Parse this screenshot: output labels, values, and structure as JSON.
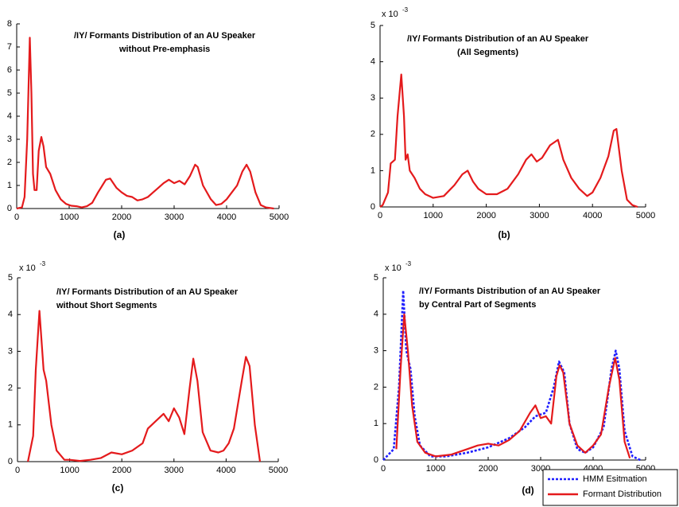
{
  "chart_data": [
    {
      "type": "line",
      "title": [
        "/IY/ Formants Distribution of an AU Speaker",
        "without Pre-emphasis"
      ],
      "panel_label": "(a)",
      "color": "#e41a1c",
      "x": [
        0,
        100,
        150,
        200,
        250,
        280,
        310,
        340,
        380,
        420,
        470,
        510,
        560,
        640,
        740,
        840,
        940,
        1040,
        1140,
        1240,
        1340,
        1440,
        1550,
        1700,
        1780,
        1900,
        2000,
        2100,
        2200,
        2300,
        2400,
        2500,
        2600,
        2700,
        2800,
        2900,
        3000,
        3100,
        3200,
        3300,
        3400,
        3450,
        3550,
        3700,
        3800,
        3900,
        4000,
        4100,
        4200,
        4300,
        4380,
        4450,
        4550,
        4650,
        4750,
        4900
      ],
      "values": [
        0,
        0.05,
        0.5,
        3,
        7.4,
        5,
        1.5,
        0.8,
        0.8,
        2.5,
        3.1,
        2.7,
        1.8,
        1.5,
        0.8,
        0.4,
        0.2,
        0.12,
        0.1,
        0.05,
        0.1,
        0.25,
        0.7,
        1.25,
        1.3,
        0.9,
        0.7,
        0.55,
        0.5,
        0.35,
        0.4,
        0.5,
        0.7,
        0.9,
        1.1,
        1.25,
        1.1,
        1.2,
        1.05,
        1.4,
        1.9,
        1.8,
        1.0,
        0.4,
        0.15,
        0.2,
        0.4,
        0.7,
        1.0,
        1.6,
        1.9,
        1.6,
        0.7,
        0.15,
        0.05,
        0
      ],
      "xlim": [
        0,
        5000
      ],
      "xticks": [
        0,
        1000,
        2000,
        3000,
        4000,
        5000
      ],
      "ylim": [
        0,
        8
      ],
      "yticks": [
        0,
        1,
        2,
        3,
        4,
        5,
        6,
        7,
        8
      ]
    },
    {
      "type": "line",
      "title": [
        "/IY/ Formants Distribution of an AU Speaker",
        "(All Segments)"
      ],
      "panel_label": "(b)",
      "y_scale_base": "x 10",
      "y_scale_exponent": "-3",
      "color": "#e41a1c",
      "x": [
        0,
        50,
        150,
        200,
        280,
        330,
        400,
        450,
        480,
        520,
        560,
        650,
        750,
        850,
        1000,
        1200,
        1400,
        1550,
        1650,
        1750,
        1850,
        2000,
        2200,
        2400,
        2600,
        2750,
        2850,
        2950,
        3050,
        3200,
        3350,
        3450,
        3600,
        3750,
        3900,
        4000,
        4150,
        4300,
        4400,
        4450,
        4550,
        4650,
        4750,
        4850
      ],
      "values": [
        0,
        0.05,
        0.4,
        1.2,
        1.3,
        2.5,
        3.65,
        2.5,
        1.3,
        1.45,
        1.0,
        0.8,
        0.5,
        0.35,
        0.25,
        0.3,
        0.6,
        0.9,
        1.0,
        0.7,
        0.5,
        0.35,
        0.35,
        0.5,
        0.9,
        1.3,
        1.45,
        1.25,
        1.35,
        1.7,
        1.85,
        1.3,
        0.8,
        0.5,
        0.3,
        0.4,
        0.8,
        1.4,
        2.1,
        2.15,
        1.0,
        0.2,
        0.05,
        0
      ],
      "xlim": [
        0,
        5000
      ],
      "xticks": [
        0,
        1000,
        2000,
        3000,
        4000,
        5000
      ],
      "ylim": [
        0,
        5
      ],
      "yticks": [
        0,
        1,
        2,
        3,
        4,
        5
      ]
    },
    {
      "type": "line",
      "title": [
        "/IY/ Formants Distribution of an AU Speaker",
        "without Short Segments"
      ],
      "panel_label": "(c)",
      "y_scale_base": "x 10",
      "y_scale_exponent": "-3",
      "color": "#e41a1c",
      "x": [
        200,
        300,
        350,
        420,
        500,
        550,
        650,
        750,
        900,
        1000,
        1200,
        1400,
        1600,
        1800,
        2000,
        2200,
        2400,
        2500,
        2650,
        2800,
        2900,
        3000,
        3100,
        3200,
        3300,
        3370,
        3450,
        3550,
        3700,
        3850,
        3950,
        4050,
        4150,
        4300,
        4380,
        4450,
        4550,
        4650
      ],
      "values": [
        0,
        0.7,
        2.5,
        4.1,
        2.5,
        2.2,
        1.0,
        0.3,
        0.05,
        0.05,
        0.02,
        0.05,
        0.1,
        0.25,
        0.2,
        0.3,
        0.5,
        0.9,
        1.1,
        1.3,
        1.1,
        1.45,
        1.2,
        0.75,
        2.0,
        2.8,
        2.2,
        0.8,
        0.3,
        0.25,
        0.3,
        0.5,
        0.9,
        2.2,
        2.85,
        2.6,
        1.0,
        0
      ],
      "xlim": [
        0,
        5000
      ],
      "xticks": [
        0,
        1000,
        2000,
        3000,
        4000,
        5000
      ],
      "ylim": [
        0,
        5
      ],
      "yticks": [
        0,
        1,
        2,
        3,
        4,
        5
      ]
    },
    {
      "type": "line",
      "title": [
        "/IY/ Formants Distribution of an AU Speaker",
        "by Central Part of Segments"
      ],
      "panel_label": "(d)",
      "y_scale_base": "x 10",
      "y_scale_exponent": "-3",
      "series": [
        {
          "name": "HMM Esitmation",
          "color": "#1f1fff",
          "dash": "dotted",
          "x": [
            0,
            200,
            300,
            380,
            440,
            520,
            600,
            700,
            900,
            1200,
            1600,
            2000,
            2400,
            2700,
            2900,
            3100,
            3250,
            3350,
            3450,
            3550,
            3700,
            3850,
            4000,
            4200,
            4350,
            4430,
            4500,
            4600,
            4750,
            4900
          ],
          "values": [
            0,
            0.3,
            2.0,
            4.65,
            3.0,
            2.5,
            1.2,
            0.4,
            0.1,
            0.1,
            0.2,
            0.35,
            0.6,
            0.9,
            1.2,
            1.3,
            2.0,
            2.7,
            2.4,
            1.0,
            0.3,
            0.2,
            0.35,
            0.9,
            2.5,
            3.0,
            2.5,
            0.8,
            0.1,
            0
          ]
        },
        {
          "name": "Formant Distribution",
          "color": "#e41a1c",
          "dash": "solid",
          "x": [
            250,
            330,
            400,
            470,
            550,
            650,
            800,
            1000,
            1300,
            1600,
            1800,
            2000,
            2200,
            2400,
            2600,
            2800,
            2900,
            3000,
            3100,
            3200,
            3300,
            3360,
            3430,
            3550,
            3700,
            3850,
            4000,
            4150,
            4300,
            4420,
            4500,
            4600,
            4700
          ],
          "values": [
            0.3,
            2.5,
            4.0,
            3.0,
            1.5,
            0.5,
            0.2,
            0.1,
            0.15,
            0.3,
            0.4,
            0.45,
            0.4,
            0.55,
            0.8,
            1.3,
            1.5,
            1.15,
            1.2,
            1.0,
            2.3,
            2.6,
            2.4,
            1.0,
            0.4,
            0.2,
            0.4,
            0.7,
            2.0,
            2.8,
            2.2,
            0.5,
            0.05
          ]
        }
      ],
      "legend": "lower right",
      "xlim": [
        0,
        5000
      ],
      "xticks": [
        0,
        1000,
        2000,
        3000,
        4000,
        5000
      ],
      "ylim": [
        0,
        5
      ],
      "yticks": [
        0,
        1,
        2,
        3,
        4,
        5
      ]
    }
  ]
}
